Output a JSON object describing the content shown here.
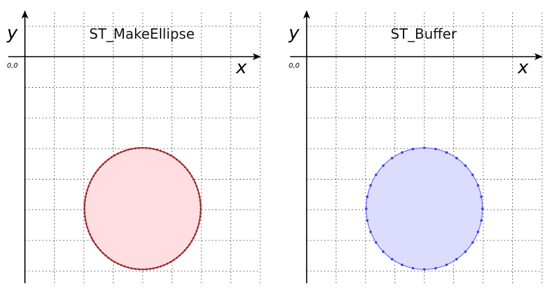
{
  "panels": [
    {
      "title": "ST_MakeEllipse",
      "y_label": "y",
      "x_label": "x",
      "origin_label": "0,0",
      "fill_color": "#ffdde1",
      "stroke_color": "#b23a3a",
      "vertex_color": "#8a2a2a",
      "vertex_count": 100
    },
    {
      "title": "ST_Buffer",
      "y_label": "y",
      "x_label": "x",
      "origin_label": "0,0",
      "fill_color": "#dcdcff",
      "stroke_color": "#6b6bff",
      "vertex_color": "#3a3ae0",
      "vertex_count": 32
    }
  ]
}
